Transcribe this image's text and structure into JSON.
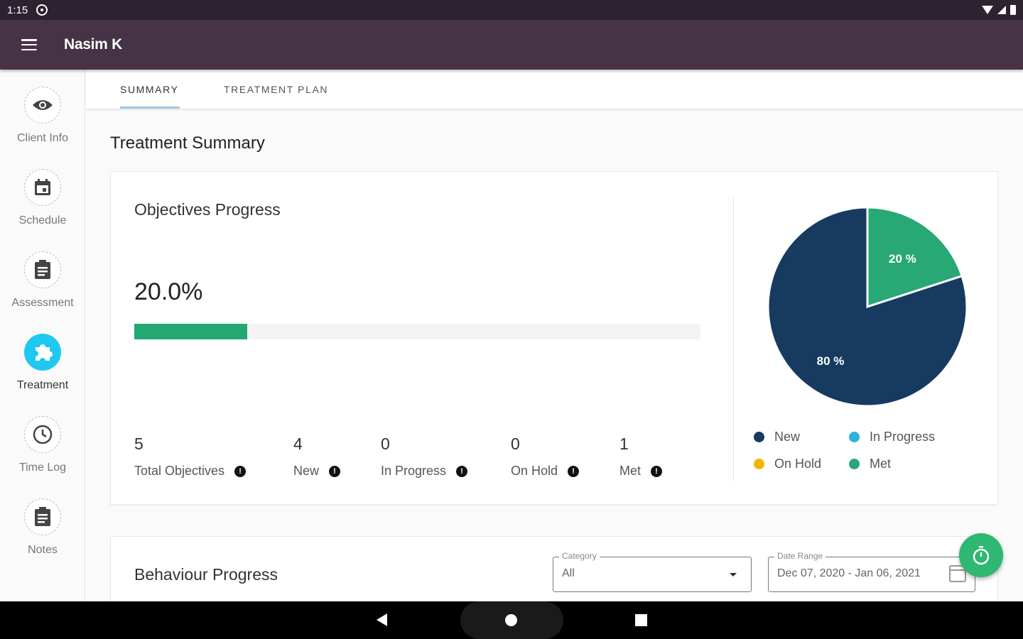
{
  "status_bar": {
    "time": "1:15"
  },
  "app_bar": {
    "title": "Nasim K"
  },
  "sidebar": {
    "items": [
      {
        "label": "Client Info",
        "icon": "eye-icon"
      },
      {
        "label": "Schedule",
        "icon": "calendar-icon"
      },
      {
        "label": "Assessment",
        "icon": "clipboard-icon"
      },
      {
        "label": "Treatment",
        "icon": "puzzle-icon",
        "active": true
      },
      {
        "label": "Time Log",
        "icon": "clock-icon"
      },
      {
        "label": "Notes",
        "icon": "notes-icon"
      }
    ]
  },
  "tabs": [
    {
      "label": "SUMMARY",
      "active": true
    },
    {
      "label": "TREATMENT PLAN",
      "active": false
    }
  ],
  "section_title": "Treatment Summary",
  "objectives": {
    "title": "Objectives Progress",
    "percent_label": "20.0%",
    "progress": 0.2,
    "stats": [
      {
        "value": "5",
        "label": "Total Objectives"
      },
      {
        "value": "4",
        "label": "New"
      },
      {
        "value": "0",
        "label": "In Progress"
      },
      {
        "value": "0",
        "label": "On Hold"
      },
      {
        "value": "1",
        "label": "Met"
      }
    ]
  },
  "chart_data": {
    "type": "pie",
    "slices": [
      {
        "label": "New",
        "value": 80,
        "display": "80 %",
        "color": "#173a60"
      },
      {
        "label": "Met",
        "value": 20,
        "display": "20 %",
        "color": "#27a874"
      }
    ],
    "legend": [
      {
        "label": "New",
        "color": "#173a60"
      },
      {
        "label": "In Progress",
        "color": "#2bb3d9"
      },
      {
        "label": "On Hold",
        "color": "#f5b400"
      },
      {
        "label": "Met",
        "color": "#27a874"
      }
    ]
  },
  "behaviour": {
    "title": "Behaviour Progress",
    "category": {
      "label": "Category",
      "value": "All"
    },
    "date_range": {
      "label": "Date Range",
      "value": "Dec 07, 2020 - Jan 06, 2021"
    }
  },
  "colors": {
    "app_bar": "#463345",
    "status_bar": "#2d2230",
    "accent": "#1fc8f0",
    "progress": "#23a874",
    "fab": "#2eb872"
  }
}
